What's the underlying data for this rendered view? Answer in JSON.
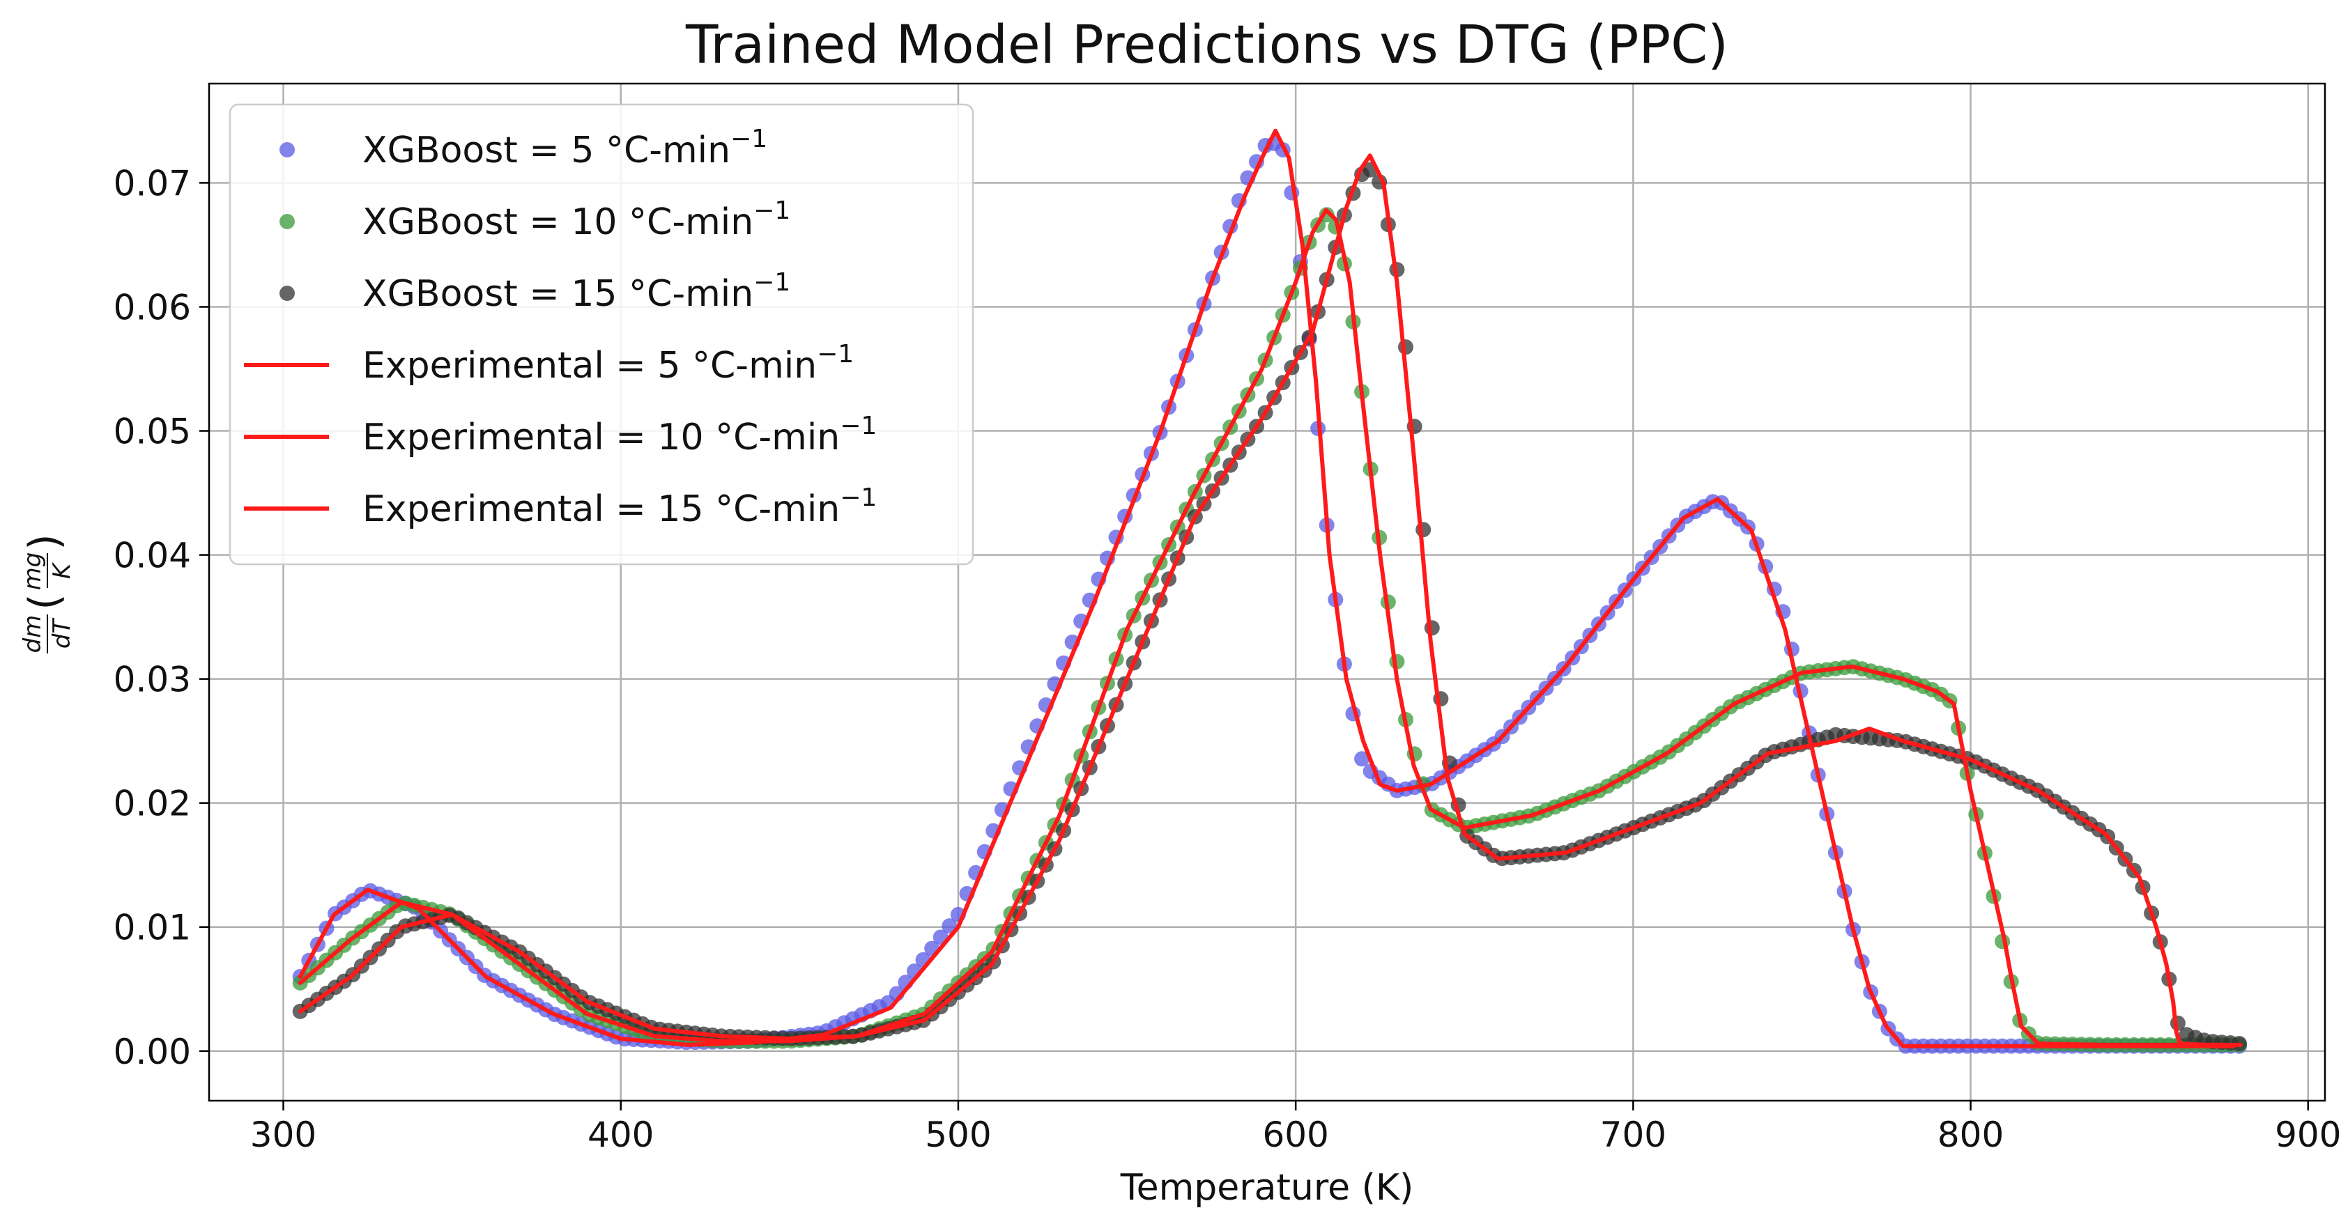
{
  "chart_data": {
    "type": "scatter+line",
    "title": "Trained Model Predictions vs DTG (PPC)",
    "xlabel": "Temperature (K)",
    "ylabel": {
      "num_left": "dm",
      "den_left": "dT",
      "num_right": "mg",
      "den_right": "K"
    },
    "xlim": [
      278,
      905
    ],
    "ylim": [
      -0.004,
      0.078
    ],
    "xticks": [
      300,
      400,
      500,
      600,
      700,
      800,
      900
    ],
    "yticks": [
      "0.00",
      "0.01",
      "0.02",
      "0.03",
      "0.04",
      "0.05",
      "0.06",
      "0.07"
    ],
    "ytick_values": [
      0,
      0.01,
      0.02,
      0.03,
      0.04,
      0.05,
      0.06,
      0.07
    ],
    "grid": true,
    "legend_position": "top-left",
    "colors": {
      "s5": "#5a5ae6",
      "s10": "#3a9a3a",
      "s15": "#333333",
      "exp": "#ff1a1a"
    },
    "series": [
      {
        "name": "XGBoost = 5 °C-min",
        "kind": "scatter",
        "color_key": "s5",
        "x": [
          305,
          315,
          325,
          340,
          360,
          380,
          400,
          420,
          440,
          460,
          480,
          500,
          520,
          540,
          560,
          575,
          585,
          592,
          597,
          600,
          605,
          610,
          615,
          620,
          630,
          640,
          660,
          680,
          700,
          715,
          725,
          735,
          745,
          755,
          760,
          765,
          770,
          775,
          780,
          800,
          820,
          840,
          860,
          880
        ],
        "y": [
          0.006,
          0.011,
          0.013,
          0.0115,
          0.006,
          0.003,
          0.001,
          0.0007,
          0.0008,
          0.0015,
          0.004,
          0.011,
          0.024,
          0.037,
          0.05,
          0.062,
          0.07,
          0.0735,
          0.0725,
          0.067,
          0.055,
          0.04,
          0.03,
          0.023,
          0.021,
          0.0215,
          0.025,
          0.031,
          0.038,
          0.043,
          0.0445,
          0.042,
          0.035,
          0.022,
          0.016,
          0.01,
          0.005,
          0.002,
          0.0004,
          0.0004,
          0.0004,
          0.0004,
          0.0004,
          0.0004
        ]
      },
      {
        "name": "XGBoost = 10 °C-min",
        "kind": "scatter",
        "color_key": "s10",
        "x": [
          305,
          320,
          335,
          350,
          370,
          390,
          410,
          430,
          450,
          470,
          490,
          510,
          530,
          550,
          570,
          590,
          600,
          605,
          609,
          613,
          618,
          623,
          628,
          633,
          640,
          650,
          670,
          690,
          710,
          730,
          750,
          765,
          780,
          790,
          795,
          800,
          805,
          810,
          815,
          820,
          840,
          860,
          880
        ],
        "y": [
          0.0055,
          0.009,
          0.012,
          0.011,
          0.007,
          0.003,
          0.0012,
          0.0008,
          0.0008,
          0.0012,
          0.003,
          0.008,
          0.019,
          0.034,
          0.045,
          0.055,
          0.062,
          0.066,
          0.0675,
          0.066,
          0.057,
          0.045,
          0.035,
          0.026,
          0.0195,
          0.018,
          0.019,
          0.021,
          0.024,
          0.028,
          0.0305,
          0.031,
          0.03,
          0.029,
          0.028,
          0.021,
          0.015,
          0.008,
          0.002,
          0.0006,
          0.0005,
          0.0005,
          0.0005
        ]
      },
      {
        "name": "XGBoost = 15 °C-min",
        "kind": "scatter",
        "color_key": "s15",
        "x": [
          305,
          320,
          335,
          350,
          370,
          390,
          410,
          430,
          450,
          470,
          490,
          510,
          530,
          550,
          570,
          590,
          605,
          615,
          621,
          625,
          630,
          635,
          640,
          645,
          650,
          660,
          680,
          700,
          720,
          740,
          760,
          780,
          800,
          820,
          840,
          850,
          855,
          858,
          860,
          862,
          870,
          880
        ],
        "y": [
          0.0032,
          0.006,
          0.01,
          0.011,
          0.008,
          0.004,
          0.0018,
          0.0012,
          0.001,
          0.0012,
          0.0025,
          0.007,
          0.017,
          0.03,
          0.043,
          0.051,
          0.058,
          0.068,
          0.0715,
          0.07,
          0.063,
          0.051,
          0.035,
          0.024,
          0.0175,
          0.0155,
          0.016,
          0.018,
          0.02,
          0.024,
          0.0255,
          0.025,
          0.0235,
          0.021,
          0.0175,
          0.014,
          0.01,
          0.007,
          0.004,
          0.0015,
          0.0008,
          0.0006
        ]
      },
      {
        "name": "Experimental = 5 °C-min",
        "kind": "line",
        "color_key": "exp",
        "x": [
          305,
          315,
          325,
          340,
          360,
          380,
          400,
          420,
          440,
          460,
          480,
          500,
          520,
          540,
          560,
          575,
          585,
          590,
          594,
          598,
          602,
          606,
          610,
          615,
          620,
          625,
          630,
          640,
          660,
          680,
          700,
          715,
          725,
          735,
          745,
          755,
          760,
          765,
          770,
          775,
          780,
          800,
          820,
          840,
          860,
          878
        ],
        "y": [
          0.006,
          0.011,
          0.013,
          0.0115,
          0.006,
          0.003,
          0.001,
          0.0005,
          0.0007,
          0.0013,
          0.0035,
          0.01,
          0.023,
          0.036,
          0.05,
          0.062,
          0.069,
          0.072,
          0.0742,
          0.072,
          0.065,
          0.054,
          0.04,
          0.03,
          0.025,
          0.0215,
          0.021,
          0.0215,
          0.025,
          0.031,
          0.038,
          0.043,
          0.0445,
          0.042,
          0.034,
          0.022,
          0.016,
          0.01,
          0.005,
          0.002,
          0.0004,
          0.0004,
          0.0004,
          0.0004,
          0.0004,
          0.0004
        ]
      },
      {
        "name": "Experimental = 10 °C-min",
        "kind": "line",
        "color_key": "exp",
        "x": [
          305,
          320,
          335,
          350,
          370,
          390,
          410,
          430,
          450,
          470,
          490,
          510,
          530,
          550,
          570,
          590,
          600,
          605,
          609,
          612,
          616,
          620,
          625,
          630,
          635,
          640,
          650,
          670,
          690,
          710,
          730,
          750,
          765,
          780,
          790,
          795,
          800,
          805,
          810,
          812,
          815,
          820,
          840,
          860,
          875
        ],
        "y": [
          0.0055,
          0.009,
          0.012,
          0.011,
          0.007,
          0.003,
          0.0012,
          0.0008,
          0.0008,
          0.0012,
          0.003,
          0.008,
          0.019,
          0.034,
          0.045,
          0.055,
          0.062,
          0.066,
          0.0678,
          0.067,
          0.062,
          0.052,
          0.04,
          0.03,
          0.023,
          0.0195,
          0.018,
          0.019,
          0.021,
          0.024,
          0.028,
          0.0305,
          0.031,
          0.03,
          0.029,
          0.028,
          0.021,
          0.015,
          0.009,
          0.006,
          0.002,
          0.0006,
          0.0005,
          0.0005,
          0.0005
        ]
      },
      {
        "name": "Experimental = 15 °C-min",
        "kind": "line",
        "color_key": "exp",
        "x": [
          305,
          320,
          335,
          350,
          370,
          390,
          410,
          430,
          450,
          470,
          490,
          510,
          530,
          550,
          570,
          590,
          605,
          615,
          619,
          622,
          626,
          630,
          635,
          640,
          645,
          650,
          660,
          680,
          700,
          720,
          740,
          760,
          770,
          780,
          800,
          820,
          840,
          850,
          855,
          858,
          860,
          861,
          862,
          870,
          880
        ],
        "y": [
          0.0032,
          0.006,
          0.01,
          0.011,
          0.008,
          0.004,
          0.0018,
          0.0012,
          0.001,
          0.0012,
          0.0025,
          0.007,
          0.017,
          0.03,
          0.043,
          0.051,
          0.058,
          0.068,
          0.071,
          0.0722,
          0.07,
          0.062,
          0.048,
          0.033,
          0.022,
          0.0175,
          0.0155,
          0.016,
          0.018,
          0.02,
          0.024,
          0.025,
          0.026,
          0.025,
          0.0235,
          0.021,
          0.0175,
          0.014,
          0.01,
          0.007,
          0.004,
          0.0015,
          0.0006,
          0.0005,
          0.0005
        ]
      }
    ],
    "legend": [
      {
        "label": "XGBoost = 5 °C-min",
        "sup": "−1",
        "kind": "marker",
        "color_key": "s5"
      },
      {
        "label": "XGBoost = 10 °C-min",
        "sup": "−1",
        "kind": "marker",
        "color_key": "s10"
      },
      {
        "label": "XGBoost = 15 °C-min",
        "sup": "−1",
        "kind": "marker",
        "color_key": "s15"
      },
      {
        "label": "Experimental = 5 °C-min",
        "sup": "−1",
        "kind": "line",
        "color_key": "exp"
      },
      {
        "label": "Experimental = 10 °C-min",
        "sup": "−1",
        "kind": "line",
        "color_key": "exp"
      },
      {
        "label": "Experimental = 15 °C-min",
        "sup": "−1",
        "kind": "line",
        "color_key": "exp"
      }
    ]
  }
}
